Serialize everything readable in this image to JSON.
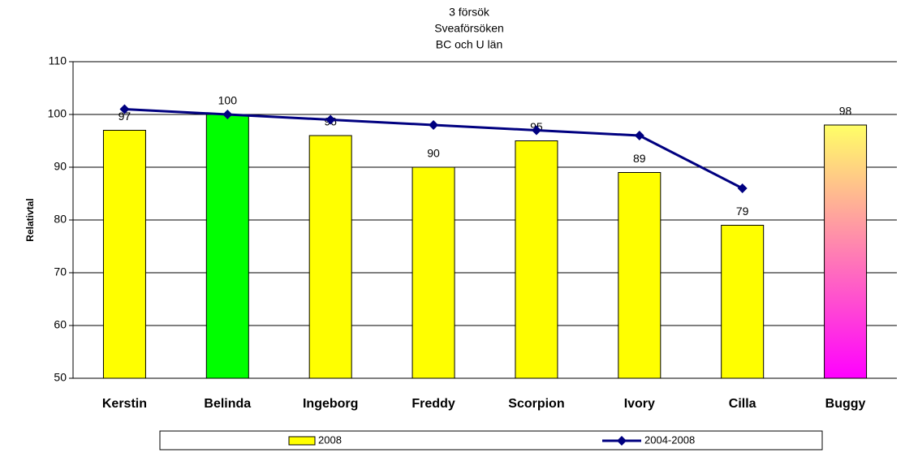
{
  "chart_data": {
    "type": "bar",
    "title": [
      "3 försök",
      "Sveaförsöken",
      "BC och U län"
    ],
    "y_label": "Relativtal",
    "categories": [
      "Kerstin",
      "Belinda",
      "Ingeborg",
      "Freddy",
      "Scorpion",
      "Ivory",
      "Cilla",
      "Buggy"
    ],
    "series": [
      {
        "name": "2008",
        "type": "bar",
        "color": "#ffff00",
        "colors": [
          "#ffff00",
          "#00ff00",
          "#ffff00",
          "#ffff00",
          "#ffff00",
          "#ffff00",
          "#ffff00",
          [
            "#ffff66",
            "#ff00ff"
          ]
        ],
        "values": [
          97,
          100,
          96,
          90,
          95,
          89,
          79,
          98
        ]
      },
      {
        "name": "2004-2008",
        "type": "line",
        "color": "#000080",
        "values": [
          101,
          100,
          99,
          98,
          97,
          96,
          86,
          null
        ]
      }
    ],
    "ylim": [
      50,
      110
    ],
    "yticks": [
      50,
      60,
      70,
      80,
      90,
      100,
      110
    ],
    "grid": true,
    "legend": "bottom"
  }
}
